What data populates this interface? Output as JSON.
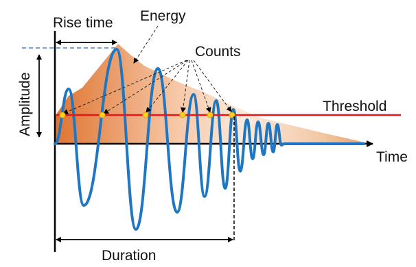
{
  "labels": {
    "rise_time": "Rise time",
    "energy": "Energy",
    "counts": "Counts",
    "threshold": "Threshold",
    "amplitude": "Amplitude",
    "time": "Time",
    "duration": "Duration"
  },
  "colors": {
    "waveform": "#1f77c4",
    "threshold": "#e8151b",
    "envelope_dark": "#e07a3a",
    "envelope_light": "#fbe6d6",
    "crossing_marker": "#ffd21f",
    "dashed_peak": "#4a7fc7",
    "axis": "#000000"
  }
}
